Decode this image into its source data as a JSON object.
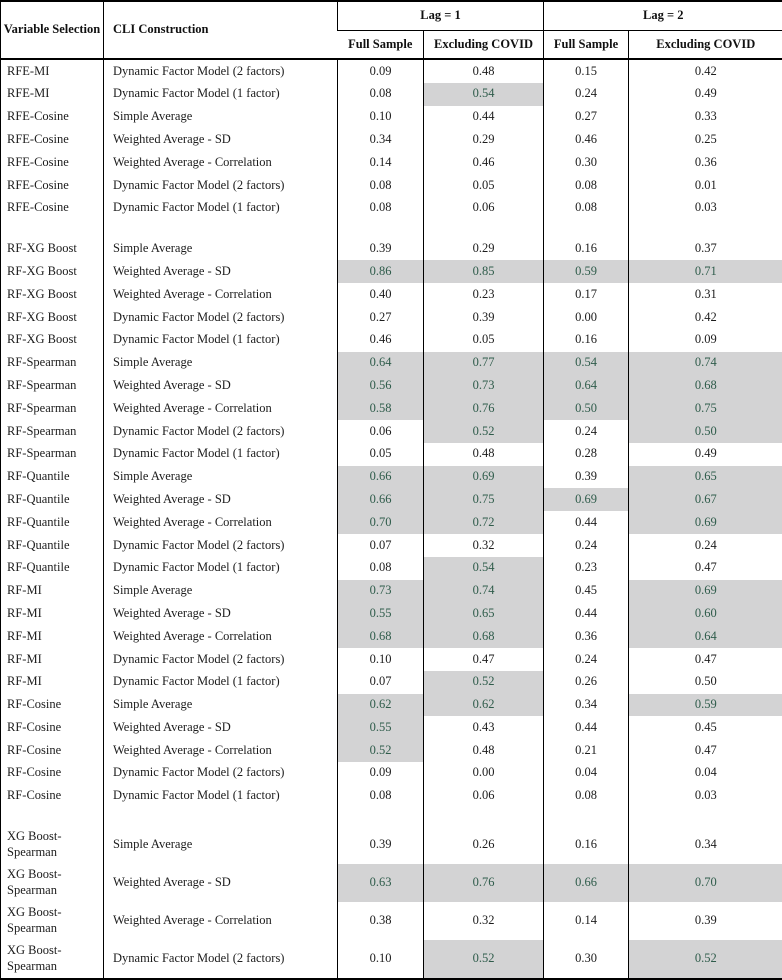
{
  "colors": {
    "highlight_bg": "#d3d3d4",
    "highlight_text": "#2f5c4b",
    "text": "#1c1c1c"
  },
  "table": {
    "header": {
      "variable_selection": "Variable Selection",
      "cli_construction": "CLI Construction",
      "lag1": "Lag = 1",
      "lag2": "Lag = 2",
      "full_sample_1": "Full Sample",
      "excluding_covid_1": "Excluding COVID",
      "full_sample_2": "Full Sample",
      "excluding_covid_2": "Excluding COVID"
    },
    "rows": [
      {
        "vs": "RFE-MI",
        "cli": "Dynamic Factor Model (2 factors)",
        "values": [
          "0.09",
          "0.48",
          "0.15",
          "0.42"
        ],
        "hl": [
          0,
          0,
          0,
          0
        ],
        "gap_before": false,
        "tall": false
      },
      {
        "vs": "RFE-MI",
        "cli": "Dynamic Factor Model (1 factor)",
        "values": [
          "0.08",
          "0.54",
          "0.24",
          "0.49"
        ],
        "hl": [
          0,
          1,
          0,
          0
        ],
        "gap_before": false,
        "tall": false
      },
      {
        "vs": "RFE-Cosine",
        "cli": "Simple Average",
        "values": [
          "0.10",
          "0.44",
          "0.27",
          "0.33"
        ],
        "hl": [
          0,
          0,
          0,
          0
        ],
        "gap_before": false,
        "tall": false
      },
      {
        "vs": "RFE-Cosine",
        "cli": "Weighted Average - SD",
        "values": [
          "0.34",
          "0.29",
          "0.46",
          "0.25"
        ],
        "hl": [
          0,
          0,
          0,
          0
        ],
        "gap_before": false,
        "tall": false
      },
      {
        "vs": "RFE-Cosine",
        "cli": "Weighted Average - Correlation",
        "values": [
          "0.14",
          "0.46",
          "0.30",
          "0.36"
        ],
        "hl": [
          0,
          0,
          0,
          0
        ],
        "gap_before": false,
        "tall": false
      },
      {
        "vs": "RFE-Cosine",
        "cli": "Dynamic Factor Model (2 factors)",
        "values": [
          "0.08",
          "0.05",
          "0.08",
          "0.01"
        ],
        "hl": [
          0,
          0,
          0,
          0
        ],
        "gap_before": false,
        "tall": false
      },
      {
        "vs": "RFE-Cosine",
        "cli": "Dynamic Factor Model (1 factor)",
        "values": [
          "0.08",
          "0.06",
          "0.08",
          "0.03"
        ],
        "hl": [
          0,
          0,
          0,
          0
        ],
        "gap_before": false,
        "tall": false
      },
      {
        "vs": "RF-XG Boost",
        "cli": "Simple Average",
        "values": [
          "0.39",
          "0.29",
          "0.16",
          "0.37"
        ],
        "hl": [
          0,
          0,
          0,
          0
        ],
        "gap_before": true,
        "tall": false
      },
      {
        "vs": "RF-XG Boost",
        "cli": "Weighted Average - SD",
        "values": [
          "0.86",
          "0.85",
          "0.59",
          "0.71"
        ],
        "hl": [
          1,
          1,
          1,
          1
        ],
        "gap_before": false,
        "tall": false
      },
      {
        "vs": "RF-XG Boost",
        "cli": "Weighted Average - Correlation",
        "values": [
          "0.40",
          "0.23",
          "0.17",
          "0.31"
        ],
        "hl": [
          0,
          0,
          0,
          0
        ],
        "gap_before": false,
        "tall": false
      },
      {
        "vs": "RF-XG Boost",
        "cli": "Dynamic Factor Model (2 factors)",
        "values": [
          "0.27",
          "0.39",
          "0.00",
          "0.42"
        ],
        "hl": [
          0,
          0,
          0,
          0
        ],
        "gap_before": false,
        "tall": false
      },
      {
        "vs": "RF-XG Boost",
        "cli": "Dynamic Factor Model (1 factor)",
        "values": [
          "0.46",
          "0.05",
          "0.16",
          "0.09"
        ],
        "hl": [
          0,
          0,
          0,
          0
        ],
        "gap_before": false,
        "tall": false
      },
      {
        "vs": "RF-Spearman",
        "cli": "Simple Average",
        "values": [
          "0.64",
          "0.77",
          "0.54",
          "0.74"
        ],
        "hl": [
          1,
          1,
          1,
          1
        ],
        "gap_before": false,
        "tall": false
      },
      {
        "vs": "RF-Spearman",
        "cli": "Weighted Average - SD",
        "values": [
          "0.56",
          "0.73",
          "0.64",
          "0.68"
        ],
        "hl": [
          1,
          1,
          1,
          1
        ],
        "gap_before": false,
        "tall": false
      },
      {
        "vs": "RF-Spearman",
        "cli": "Weighted Average - Correlation",
        "values": [
          "0.58",
          "0.76",
          "0.50",
          "0.75"
        ],
        "hl": [
          1,
          1,
          1,
          1
        ],
        "gap_before": false,
        "tall": false
      },
      {
        "vs": "RF-Spearman",
        "cli": "Dynamic Factor Model (2 factors)",
        "values": [
          "0.06",
          "0.52",
          "0.24",
          "0.50"
        ],
        "hl": [
          0,
          1,
          0,
          1
        ],
        "gap_before": false,
        "tall": false
      },
      {
        "vs": "RF-Spearman",
        "cli": "Dynamic Factor Model (1 factor)",
        "values": [
          "0.05",
          "0.48",
          "0.28",
          "0.49"
        ],
        "hl": [
          0,
          0,
          0,
          0
        ],
        "gap_before": false,
        "tall": false
      },
      {
        "vs": "RF-Quantile",
        "cli": "Simple Average",
        "values": [
          "0.66",
          "0.69",
          "0.39",
          "0.65"
        ],
        "hl": [
          1,
          1,
          0,
          1
        ],
        "gap_before": false,
        "tall": false
      },
      {
        "vs": "RF-Quantile",
        "cli": "Weighted Average - SD",
        "values": [
          "0.66",
          "0.75",
          "0.69",
          "0.67"
        ],
        "hl": [
          1,
          1,
          1,
          1
        ],
        "gap_before": false,
        "tall": false
      },
      {
        "vs": "RF-Quantile",
        "cli": "Weighted Average - Correlation",
        "values": [
          "0.70",
          "0.72",
          "0.44",
          "0.69"
        ],
        "hl": [
          1,
          1,
          0,
          1
        ],
        "gap_before": false,
        "tall": false
      },
      {
        "vs": "RF-Quantile",
        "cli": "Dynamic Factor Model (2 factors)",
        "values": [
          "0.07",
          "0.32",
          "0.24",
          "0.24"
        ],
        "hl": [
          0,
          0,
          0,
          0
        ],
        "gap_before": false,
        "tall": false
      },
      {
        "vs": "RF-Quantile",
        "cli": "Dynamic Factor Model (1 factor)",
        "values": [
          "0.08",
          "0.54",
          "0.23",
          "0.47"
        ],
        "hl": [
          0,
          1,
          0,
          0
        ],
        "gap_before": false,
        "tall": false
      },
      {
        "vs": "RF-MI",
        "cli": "Simple Average",
        "values": [
          "0.73",
          "0.74",
          "0.45",
          "0.69"
        ],
        "hl": [
          1,
          1,
          0,
          1
        ],
        "gap_before": false,
        "tall": false
      },
      {
        "vs": "RF-MI",
        "cli": "Weighted Average - SD",
        "values": [
          "0.55",
          "0.65",
          "0.44",
          "0.60"
        ],
        "hl": [
          1,
          1,
          0,
          1
        ],
        "gap_before": false,
        "tall": false
      },
      {
        "vs": "RF-MI",
        "cli": "Weighted Average - Correlation",
        "values": [
          "0.68",
          "0.68",
          "0.36",
          "0.64"
        ],
        "hl": [
          1,
          1,
          0,
          1
        ],
        "gap_before": false,
        "tall": false
      },
      {
        "vs": "RF-MI",
        "cli": "Dynamic Factor Model (2 factors)",
        "values": [
          "0.10",
          "0.47",
          "0.24",
          "0.47"
        ],
        "hl": [
          0,
          0,
          0,
          0
        ],
        "gap_before": false,
        "tall": false
      },
      {
        "vs": "RF-MI",
        "cli": "Dynamic Factor Model (1 factor)",
        "values": [
          "0.07",
          "0.52",
          "0.26",
          "0.50"
        ],
        "hl": [
          0,
          1,
          0,
          0
        ],
        "gap_before": false,
        "tall": false
      },
      {
        "vs": "RF-Cosine",
        "cli": "Simple Average",
        "values": [
          "0.62",
          "0.62",
          "0.34",
          "0.59"
        ],
        "hl": [
          1,
          1,
          0,
          1
        ],
        "gap_before": false,
        "tall": false
      },
      {
        "vs": "RF-Cosine",
        "cli": "Weighted Average - SD",
        "values": [
          "0.55",
          "0.43",
          "0.44",
          "0.45"
        ],
        "hl": [
          1,
          0,
          0,
          0
        ],
        "gap_before": false,
        "tall": false
      },
      {
        "vs": "RF-Cosine",
        "cli": "Weighted Average - Correlation",
        "values": [
          "0.52",
          "0.48",
          "0.21",
          "0.47"
        ],
        "hl": [
          1,
          0,
          0,
          0
        ],
        "gap_before": false,
        "tall": false
      },
      {
        "vs": "RF-Cosine",
        "cli": "Dynamic Factor Model (2 factors)",
        "values": [
          "0.09",
          "0.00",
          "0.04",
          "0.04"
        ],
        "hl": [
          0,
          0,
          0,
          0
        ],
        "gap_before": false,
        "tall": false
      },
      {
        "vs": "RF-Cosine",
        "cli": "Dynamic Factor Model (1 factor)",
        "values": [
          "0.08",
          "0.06",
          "0.08",
          "0.03"
        ],
        "hl": [
          0,
          0,
          0,
          0
        ],
        "gap_before": false,
        "tall": false
      },
      {
        "vs": "XG Boost-Spearman",
        "cli": "Simple Average",
        "values": [
          "0.39",
          "0.26",
          "0.16",
          "0.34"
        ],
        "hl": [
          0,
          0,
          0,
          0
        ],
        "gap_before": true,
        "tall": true
      },
      {
        "vs": "XG Boost-Spearman",
        "cli": "Weighted Average - SD",
        "values": [
          "0.63",
          "0.76",
          "0.66",
          "0.70"
        ],
        "hl": [
          1,
          1,
          1,
          1
        ],
        "gap_before": false,
        "tall": true
      },
      {
        "vs": "XG Boost-Spearman",
        "cli": "Weighted Average - Correlation",
        "values": [
          "0.38",
          "0.32",
          "0.14",
          "0.39"
        ],
        "hl": [
          0,
          0,
          0,
          0
        ],
        "gap_before": false,
        "tall": true
      },
      {
        "vs": "XG Boost-Spearman",
        "cli": "Dynamic Factor Model (2 factors)",
        "values": [
          "0.10",
          "0.52",
          "0.30",
          "0.52"
        ],
        "hl": [
          0,
          1,
          0,
          1
        ],
        "gap_before": false,
        "tall": true
      }
    ]
  }
}
